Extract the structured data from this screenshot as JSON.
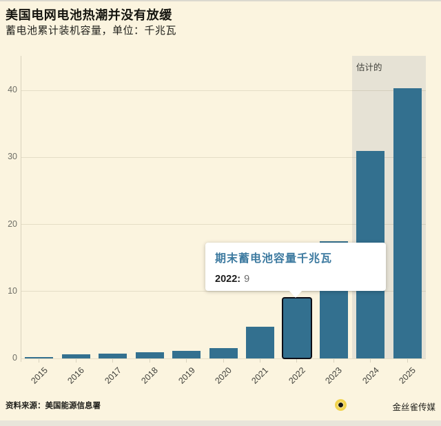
{
  "header": {
    "title": "美国电网电池热潮并没有放缓",
    "subtitle": "蓄电池累计装机容量，单位：千兆瓦"
  },
  "chart_data": {
    "type": "bar",
    "title": "美国电网电池热潮并没有放缓",
    "subtitle": "蓄电池累计装机容量，单位：千兆瓦",
    "categories": [
      "2015",
      "2016",
      "2017",
      "2018",
      "2019",
      "2020",
      "2021",
      "2022",
      "2023",
      "2024",
      "2025"
    ],
    "values": [
      0.2,
      0.6,
      0.7,
      0.9,
      1.1,
      1.5,
      4.7,
      9,
      17.5,
      31,
      40.3
    ],
    "xlabel": "",
    "ylabel": "千兆瓦",
    "ylim": [
      0,
      45
    ],
    "yticks": [
      0,
      10,
      20,
      30,
      40
    ],
    "grid": true,
    "legend_position": "none",
    "bar_color": "#33708F",
    "highlight_category": "2022",
    "highlight_outline_color": "#0d0d15",
    "estimated": {
      "label": "估计的",
      "from_category": "2024",
      "region_color": "#E6E2D5"
    }
  },
  "tooltip": {
    "title": "期末蓄电池容量千兆瓦",
    "label": "2022:",
    "value": "9",
    "title_color": "#3D7AA0"
  },
  "footer": {
    "source": "资料来源：美国能源信息署",
    "brand": "金丝雀传媒",
    "logo_icon": "canary-logo",
    "logo_color": "#F1D34E"
  },
  "colors": {
    "background": "#FBF4DF",
    "bar": "#33708F",
    "estimated_region": "#E6E2D5",
    "axis": "#D9D2BD",
    "tooltip_title": "#3D7AA0"
  }
}
